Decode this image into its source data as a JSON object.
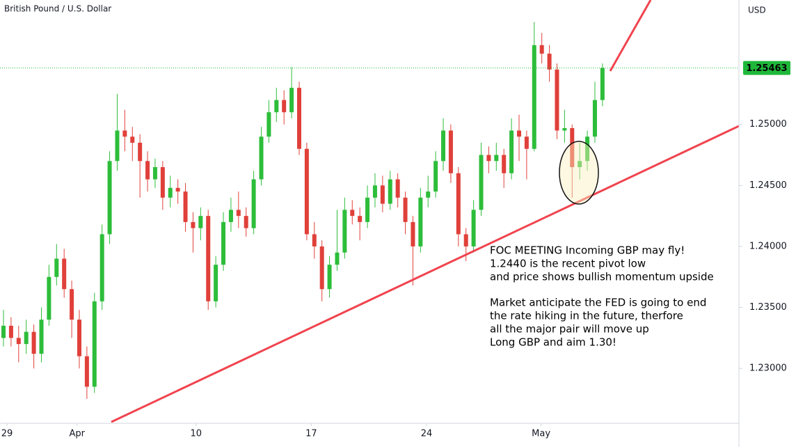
{
  "chart_data": {
    "type": "candlestick",
    "title": "British Pound / U.S. Dollar",
    "y_axis_label": "USD",
    "up_color": "#2dbd3a",
    "down_color": "#e0403a",
    "last_price_color": "#1fb83a",
    "open": [
      1.2325,
      1.2335,
      1.2325,
      1.232,
      1.233,
      1.2312,
      1.234,
      1.2375,
      1.239,
      1.2365,
      1.234,
      1.231,
      1.2285,
      1.2355,
      1.241,
      1.247,
      1.2495,
      1.249,
      1.2485,
      1.247,
      1.2455,
      1.2465,
      1.244,
      1.2448,
      1.2445,
      1.242,
      1.2415,
      1.2425,
      1.2355,
      1.2385,
      1.242,
      1.243,
      1.2425,
      1.2415,
      1.2455,
      1.249,
      1.251,
      1.252,
      1.251,
      1.253,
      1.248,
      1.241,
      1.24,
      1.2365,
      1.2385,
      1.2395,
      1.243,
      1.2425,
      1.242,
      1.244,
      1.245,
      1.2435,
      1.2455,
      1.244,
      1.242,
      1.24,
      1.244,
      1.2445,
      1.247,
      1.2495,
      1.246,
      1.241,
      1.24,
      1.243,
      1.2475,
      1.247,
      1.2475,
      1.246,
      1.2495,
      1.249,
      1.248,
      1.2565,
      1.2558,
      1.2545,
      1.2495,
      1.2497,
      1.2465,
      1.247,
      1.249,
      1.252
    ],
    "high": [
      1.2348,
      1.2342,
      1.2335,
      1.234,
      1.2336,
      1.235,
      1.2385,
      1.2402,
      1.2398,
      1.2372,
      1.2348,
      1.2318,
      1.2362,
      1.2418,
      1.2478,
      1.2525,
      1.2512,
      1.2498,
      1.2492,
      1.2478,
      1.2472,
      1.247,
      1.2458,
      1.2455,
      1.2452,
      1.2428,
      1.2432,
      1.243,
      1.2392,
      1.2428,
      1.244,
      1.2445,
      1.2432,
      1.2462,
      1.2498,
      1.252,
      1.253,
      1.2528,
      1.2547,
      1.2535,
      1.2485,
      1.242,
      1.2405,
      1.2392,
      1.243,
      1.244,
      1.2438,
      1.2432,
      1.245,
      1.246,
      1.2458,
      1.2462,
      1.246,
      1.2445,
      1.2425,
      1.2448,
      1.2458,
      1.2478,
      1.2505,
      1.25,
      1.2465,
      1.2415,
      1.2438,
      1.2485,
      1.2482,
      1.2485,
      1.248,
      1.2505,
      1.2508,
      1.2495,
      1.2584,
      1.2575,
      1.2565,
      1.255,
      1.2512,
      1.25,
      1.2485,
      1.2495,
      1.2535,
      1.255
    ],
    "low": [
      1.2318,
      1.2318,
      1.2305,
      1.2312,
      1.23,
      1.2305,
      1.2335,
      1.2368,
      1.2358,
      1.2325,
      1.23,
      1.2275,
      1.228,
      1.2348,
      1.2402,
      1.2462,
      1.2478,
      1.247,
      1.244,
      1.2445,
      1.2448,
      1.243,
      1.2432,
      1.2435,
      1.2412,
      1.2395,
      1.2405,
      1.2348,
      1.235,
      1.238,
      1.2412,
      1.2415,
      1.2408,
      1.241,
      1.245,
      1.2485,
      1.2502,
      1.25,
      1.2505,
      1.2475,
      1.2405,
      1.239,
      1.2355,
      1.2358,
      1.238,
      1.239,
      1.2418,
      1.2405,
      1.2415,
      1.2432,
      1.2428,
      1.243,
      1.2432,
      1.241,
      1.2368,
      1.2395,
      1.2432,
      1.244,
      1.2462,
      1.2452,
      1.24,
      1.2388,
      1.2395,
      1.2425,
      1.246,
      1.2462,
      1.2448,
      1.2455,
      1.247,
      1.2455,
      1.2478,
      1.255,
      1.2535,
      1.2488,
      1.2485,
      1.244,
      1.2455,
      1.2462,
      1.2485,
      1.2515
    ],
    "close": [
      1.2335,
      1.2325,
      1.232,
      1.233,
      1.2312,
      1.234,
      1.2375,
      1.239,
      1.2365,
      1.234,
      1.231,
      1.2285,
      1.2355,
      1.241,
      1.247,
      1.2495,
      1.249,
      1.2485,
      1.247,
      1.2455,
      1.2465,
      1.244,
      1.2448,
      1.2445,
      1.242,
      1.2415,
      1.2425,
      1.2355,
      1.2385,
      1.242,
      1.243,
      1.2425,
      1.2415,
      1.2455,
      1.249,
      1.251,
      1.252,
      1.251,
      1.253,
      1.248,
      1.241,
      1.24,
      1.2365,
      1.2385,
      1.2395,
      1.243,
      1.2425,
      1.242,
      1.244,
      1.245,
      1.2435,
      1.2455,
      1.244,
      1.242,
      1.24,
      1.244,
      1.2445,
      1.247,
      1.2495,
      1.246,
      1.241,
      1.24,
      1.243,
      1.2475,
      1.247,
      1.2475,
      1.246,
      1.2495,
      1.249,
      1.248,
      1.2565,
      1.2558,
      1.2545,
      1.2495,
      1.2497,
      1.2465,
      1.247,
      1.249,
      1.252,
      1.25463
    ],
    "xlim": [
      -0.46,
      97
    ],
    "xticks": [
      {
        "value": 0.46,
        "label": "29"
      },
      {
        "value": 9.7,
        "label": "Apr"
      },
      {
        "value": 25.4,
        "label": "10"
      },
      {
        "value": 40.6,
        "label": "17"
      },
      {
        "value": 55.8,
        "label": "24"
      },
      {
        "value": 70.9,
        "label": "May"
      }
    ],
    "ylim": [
      1.2255,
      1.2602
    ],
    "yticks": [
      {
        "value": 1.23,
        "label": "1.23000"
      },
      {
        "value": 1.235,
        "label": "1.23500"
      },
      {
        "value": 1.24,
        "label": "1.24000"
      },
      {
        "value": 1.245,
        "label": "1.24500"
      },
      {
        "value": 1.25,
        "label": "1.25000"
      }
    ],
    "annotation": [
      [
        "FOC MEETING Incoming GBP may fly!",
        "1.2440 is the recent pivot low",
        "and price shows bullish momentum upside"
      ],
      [
        "Market anticipate the FED is going to end",
        "the rate hiking in the future, therfore",
        "all the major pair will move up",
        "Long GBP and aim 1.30!"
      ]
    ]
  }
}
